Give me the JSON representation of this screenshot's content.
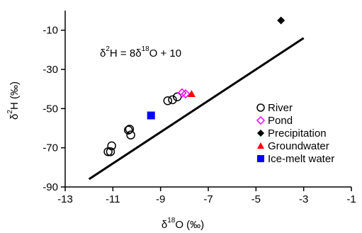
{
  "chart_data": {
    "type": "scatter",
    "xlabel": {
      "main": "δ",
      "sup": "18",
      "rest": "O (‰)"
    },
    "ylabel": {
      "main": "δ",
      "sup": "2",
      "rest": "H (‰)"
    },
    "xlim": [
      -13,
      -1
    ],
    "ylim": [
      -90,
      0
    ],
    "xticks": [
      -13,
      -11,
      -9,
      -7,
      -5,
      -3,
      -1
    ],
    "xtick_labels": [
      "-13",
      "-11",
      "-9",
      "-7",
      "-5",
      "-3",
      "-1"
    ],
    "yticks": [
      -90,
      -70,
      -50,
      -30,
      -10
    ],
    "ytick_labels": [
      "-90",
      "-70",
      "-50",
      "-30",
      "-10"
    ],
    "grid": false,
    "legend_position": "right",
    "reference_line": {
      "slope": 8,
      "intercept": 10,
      "x_range": [
        -12,
        -3
      ],
      "label": {
        "p1": "δ",
        "s1": "2",
        "p2": "H = 8δ",
        "s2": "18",
        "p3": "O + 10"
      }
    },
    "series": [
      {
        "name": "River",
        "marker": "open-circle",
        "color": "#000000",
        "points": [
          [
            -11.2,
            -72
          ],
          [
            -11.1,
            -72
          ],
          [
            -11.05,
            -69
          ],
          [
            -10.35,
            -61
          ],
          [
            -10.3,
            -60.5
          ],
          [
            -10.25,
            -63.5
          ],
          [
            -8.7,
            -46
          ],
          [
            -8.5,
            -45.5
          ],
          [
            -8.3,
            -44
          ]
        ]
      },
      {
        "name": "Pond",
        "marker": "open-diamond",
        "color": "#ff00ff",
        "points": [
          [
            -8.1,
            -42
          ],
          [
            -7.95,
            -42.5
          ]
        ]
      },
      {
        "name": "Precipitation",
        "marker": "filled-diamond",
        "color": "#000000",
        "points": [
          [
            -3.95,
            -5
          ]
        ]
      },
      {
        "name": "Groundwater",
        "marker": "filled-triangle",
        "color": "#ff0000",
        "points": [
          [
            -7.7,
            -42.5
          ]
        ]
      },
      {
        "name": "Ice-melt water",
        "marker": "filled-square",
        "color": "#0000ff",
        "points": [
          [
            -9.4,
            -53.5
          ]
        ]
      }
    ]
  }
}
